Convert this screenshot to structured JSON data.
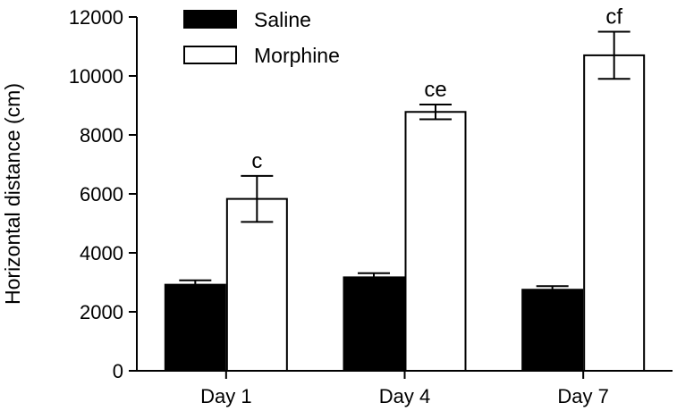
{
  "chart_data": {
    "type": "bar",
    "title": "",
    "xlabel": "",
    "ylabel": "Horizontal distance (cm)",
    "ylim": [
      0,
      12000
    ],
    "yticks": [
      "0",
      "2000",
      "4000",
      "6000",
      "8000",
      "10000",
      "12000"
    ],
    "categories": [
      "Day 1",
      "Day 4",
      "Day 7"
    ],
    "series": [
      {
        "name": "Saline",
        "color": "#000000",
        "values": [
          2920,
          3170,
          2750
        ],
        "errors": [
          150,
          140,
          120
        ],
        "labels": [
          "",
          "",
          ""
        ]
      },
      {
        "name": "Morphine",
        "color": "#ffffff",
        "values": [
          5830,
          8780,
          10700
        ],
        "errors": [
          780,
          250,
          800
        ],
        "labels": [
          "c",
          "ce",
          "cf"
        ]
      }
    ],
    "legend_position": "top-left",
    "grid": false
  }
}
